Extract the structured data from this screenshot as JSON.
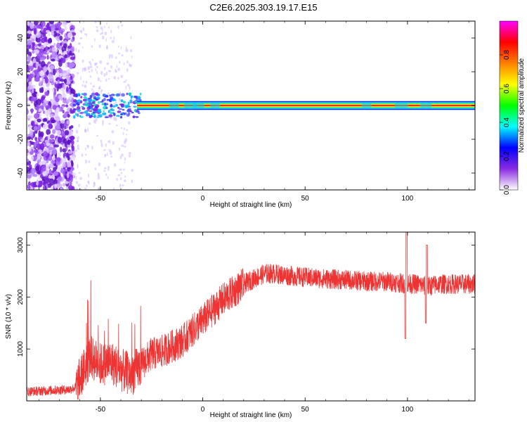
{
  "title": "C2E6.2025.303.19.17.E15",
  "chart_data": [
    {
      "type": "heatmap",
      "xlabel": "Height of straight line (km)",
      "ylabel": "Frequency (Hz)",
      "xlim": [
        -86,
        133
      ],
      "ylim": [
        -50,
        50
      ],
      "xticks": [
        -50,
        0,
        50,
        100
      ],
      "xtick_labels": [
        "-50",
        "0",
        "50",
        "100"
      ],
      "yticks": [
        -40,
        -20,
        0,
        20,
        40
      ],
      "ytick_labels": [
        "-40",
        "-20",
        "0",
        "20",
        "40"
      ],
      "colorbar": {
        "label": "Normalized spectral amplitude",
        "range": [
          0,
          1
        ],
        "ticks": [
          0.0,
          0.2,
          0.4,
          0.6,
          0.8
        ],
        "tick_labels": [
          "0.0",
          "0.2",
          "0.4",
          "0.6",
          "0.8"
        ],
        "colors": [
          "#ffffff",
          "#8a2be2",
          "#0000ff",
          "#00ffff",
          "#00ff00",
          "#ffff00",
          "#ff8000",
          "#ff0000",
          "#ff00ff"
        ]
      },
      "grid": false
    },
    {
      "type": "line",
      "xlabel": "Height of straight line (km)",
      "ylabel": "SNR (10 * v/v)",
      "xlim": [
        -86,
        133
      ],
      "ylim": [
        0,
        3250
      ],
      "xticks": [
        -50,
        0,
        50,
        100
      ],
      "xtick_labels": [
        "-50",
        "0",
        "50",
        "100"
      ],
      "yticks": [
        1000,
        2000,
        3000
      ],
      "ytick_labels": [
        "1000",
        "2000",
        "3000"
      ],
      "line_color": "#ee3333",
      "x": [
        -86,
        -75,
        -65,
        -62,
        -58,
        -55,
        -50,
        -45,
        -40,
        -35,
        -30,
        -25,
        -20,
        -15,
        -10,
        -5,
        0,
        5,
        10,
        15,
        20,
        25,
        30,
        35,
        40,
        50,
        60,
        70,
        80,
        90,
        95,
        100,
        105,
        110,
        115,
        120,
        125,
        133
      ],
      "y": [
        180,
        200,
        220,
        260,
        600,
        850,
        700,
        750,
        600,
        500,
        700,
        900,
        950,
        1050,
        1150,
        1350,
        1550,
        1750,
        1950,
        2100,
        2250,
        2350,
        2450,
        2450,
        2420,
        2380,
        2350,
        2330,
        2300,
        2300,
        2280,
        2250,
        2250,
        2200,
        2250,
        2250,
        2250,
        2250
      ],
      "grid": false
    }
  ]
}
